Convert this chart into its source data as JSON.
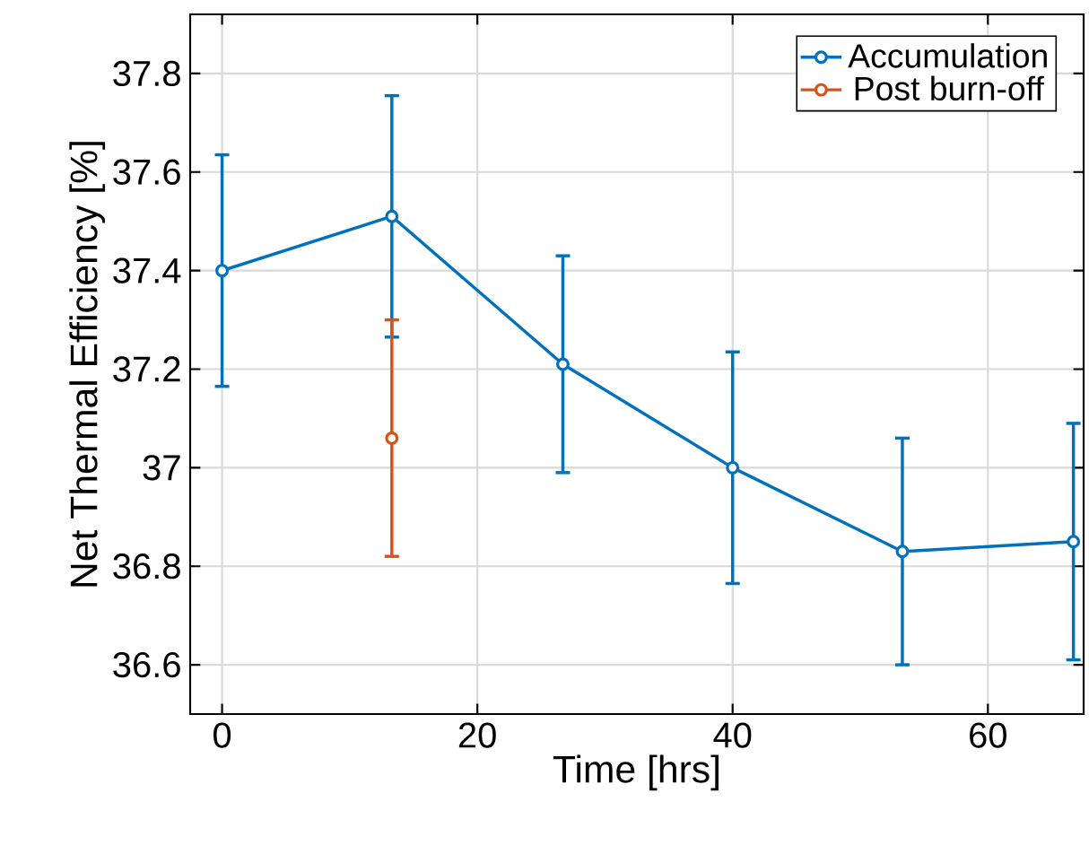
{
  "chart_data": {
    "type": "line",
    "xlabel": "Time [hrs]",
    "ylabel": "Net Thermal Efficiency [%]",
    "x": [
      0,
      13.3,
      26.7,
      40,
      53.3,
      66.7
    ],
    "series": [
      {
        "name": "Accumulation",
        "color": "#0072bd",
        "values": [
          37.4,
          37.51,
          37.21,
          37.0,
          36.83,
          36.85
        ],
        "errors": [
          0.235,
          0.245,
          0.22,
          0.235,
          0.23,
          0.24
        ]
      },
      {
        "name": "Post burn-off",
        "color": "#d95319",
        "x": [
          13.3
        ],
        "values": [
          37.06
        ],
        "errors": [
          0.24
        ]
      }
    ],
    "xlim": [
      -2.5,
      67.5
    ],
    "ylim": [
      36.5,
      37.92
    ],
    "xticks": [
      0,
      20,
      40,
      60
    ],
    "yticks": [
      36.6,
      36.8,
      37,
      37.2,
      37.4,
      37.6,
      37.8
    ],
    "grid": true,
    "legend": "top right",
    "marker": "circle",
    "line_style": "solid"
  }
}
